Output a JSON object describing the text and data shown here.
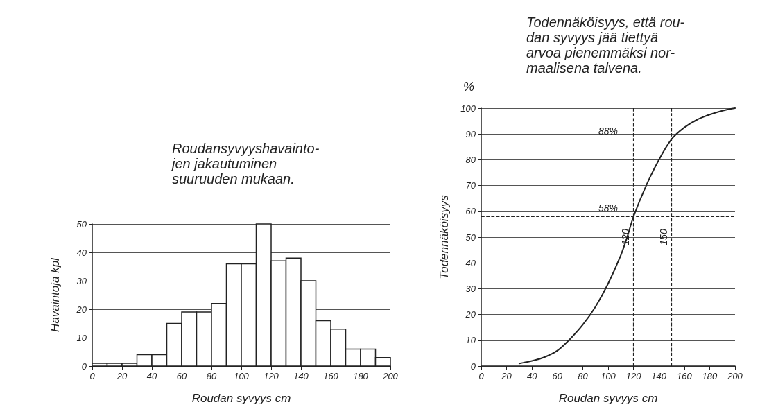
{
  "chart_data": [
    {
      "type": "histogram",
      "title": "Roudansyvyyshavainto-\njen jakautuminen\nsuuruuden mukaan.",
      "xlabel": "Roudan syvyys cm",
      "ylabel": "Havaintoja kpl",
      "bins": [
        0,
        10,
        20,
        30,
        40,
        50,
        60,
        70,
        80,
        90,
        100,
        110,
        120,
        130,
        140,
        150,
        160,
        170,
        180,
        190,
        200
      ],
      "values": [
        1,
        1,
        1,
        4,
        4,
        15,
        19,
        19,
        22,
        36,
        36,
        50,
        37,
        38,
        30,
        16,
        13,
        6,
        6,
        3
      ],
      "color": "#ffffff",
      "xlim": [
        0,
        200
      ],
      "xticks": [
        0,
        20,
        40,
        60,
        80,
        100,
        120,
        140,
        160,
        180,
        200
      ],
      "ylim": [
        0,
        50
      ],
      "yticks": [
        0,
        10,
        20,
        30,
        40,
        50
      ],
      "grid": "y"
    },
    {
      "type": "line",
      "title": "Todennäköisyys, että rou-\ndan syvyys jää tiettyä\narvoa pienemmäksi nor-\nmaalisena talvena.",
      "xlabel": "Roudan syvyys cm",
      "ylabel": "Todennäköisyys",
      "annotations": [
        "%"
      ],
      "x": [
        30,
        40,
        50,
        60,
        70,
        80,
        90,
        100,
        110,
        115,
        120,
        130,
        140,
        150,
        160,
        170,
        180,
        190,
        200
      ],
      "values": [
        1,
        2,
        3.5,
        6,
        10.5,
        16,
        23,
        32,
        43,
        50,
        58,
        70,
        80,
        88,
        92.5,
        95.5,
        97.5,
        99,
        100
      ],
      "color": "#222222",
      "marker": "none",
      "line_style": "solid",
      "xlim": [
        0,
        200
      ],
      "xticks": [
        0,
        20,
        40,
        60,
        80,
        100,
        120,
        140,
        160,
        180,
        200
      ],
      "ylim": [
        0,
        100
      ],
      "yticks": [
        0,
        10,
        20,
        30,
        40,
        50,
        60,
        70,
        80,
        90,
        100
      ],
      "grid": "y",
      "ref_lines": [
        {
          "axis": "x",
          "value": 120,
          "label": "120",
          "line_style": "dashed"
        },
        {
          "axis": "x",
          "value": 150,
          "label": "150",
          "line_style": "dashed"
        },
        {
          "axis": "y",
          "value": 58,
          "label": "58%",
          "line_style": "dashed"
        },
        {
          "axis": "y",
          "value": 88,
          "label": "88%",
          "line_style": "dashed"
        }
      ]
    }
  ]
}
